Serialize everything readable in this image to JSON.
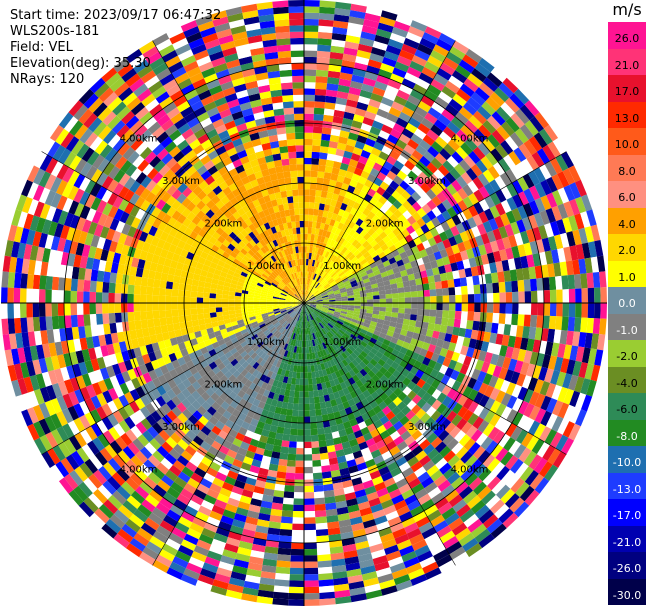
{
  "header": {
    "start_time": "Start time: 2023/09/17 06:47:32",
    "station": "WLS200s-181",
    "field": "Field: VEL",
    "elevation": "Elevation(deg): 35.30",
    "nrays": "NRays: 120"
  },
  "chart_data": {
    "type": "polar",
    "field": "VEL",
    "units": "m/s",
    "n_rays": 120,
    "range_ring_labels": [
      "1.00km",
      "2.00km",
      "3.00km",
      "4.00km"
    ],
    "colorbar": {
      "title": "m/s",
      "ticks": [
        "26.0",
        "21.0",
        "17.0",
        "13.0",
        "10.0",
        "8.0",
        "6.0",
        "4.0",
        "2.0",
        "1.0",
        "0.0",
        "-1.0",
        "-2.0",
        "-4.0",
        "-6.0",
        "-8.0",
        "-10.0",
        "-13.0",
        "-17.0",
        "-21.0",
        "-26.0",
        "-30.0"
      ],
      "colors": [
        "#ff1493",
        "#ff3377",
        "#e8112d",
        "#ff2a00",
        "#ff5a1a",
        "#ff7a55",
        "#ff9080",
        "#ffa000",
        "#ffd700",
        "#ffff00",
        "#6f8fa0",
        "#808080",
        "#9acd32",
        "#6b8e23",
        "#2e8b57",
        "#228b22",
        "#1e6fb0",
        "#1e3cff",
        "#0000ff",
        "#0000b0",
        "#000080",
        "#00004a"
      ]
    }
  }
}
